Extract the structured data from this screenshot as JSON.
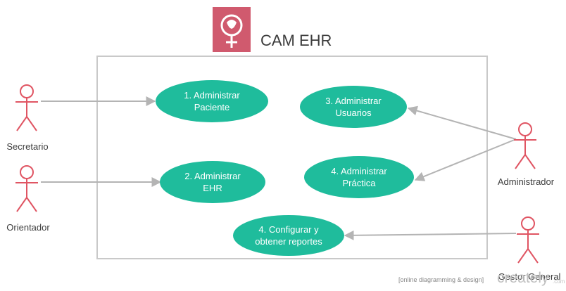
{
  "diagram": {
    "title": "CAM EHR",
    "use_cases": [
      {
        "id": "uc1",
        "label": "1. Administrar\nPaciente"
      },
      {
        "id": "uc2",
        "label": "2. Administrar\nEHR"
      },
      {
        "id": "uc3",
        "label": "3. Administrar\nUsuarios"
      },
      {
        "id": "uc4",
        "label": "4. Administrar\nPráctica"
      },
      {
        "id": "uc5",
        "label": "4. Configurar y\nobtener reportes"
      }
    ],
    "actors": [
      {
        "id": "secretario",
        "label": "Secretario"
      },
      {
        "id": "orientador",
        "label": "Orientador"
      },
      {
        "id": "administrador",
        "label": "Administrador"
      },
      {
        "id": "gestor",
        "label": "Gestor General"
      }
    ],
    "colors": {
      "use_case": "#1fbc9c",
      "actor": "#e05563",
      "boundary": "#c9c9c9",
      "logo": "#d05a6e",
      "edge": "#b4b4b4"
    }
  },
  "footer": {
    "tagline": "[online diagramming & design]",
    "brand": "creately",
    "brand_suffix": ".com"
  }
}
